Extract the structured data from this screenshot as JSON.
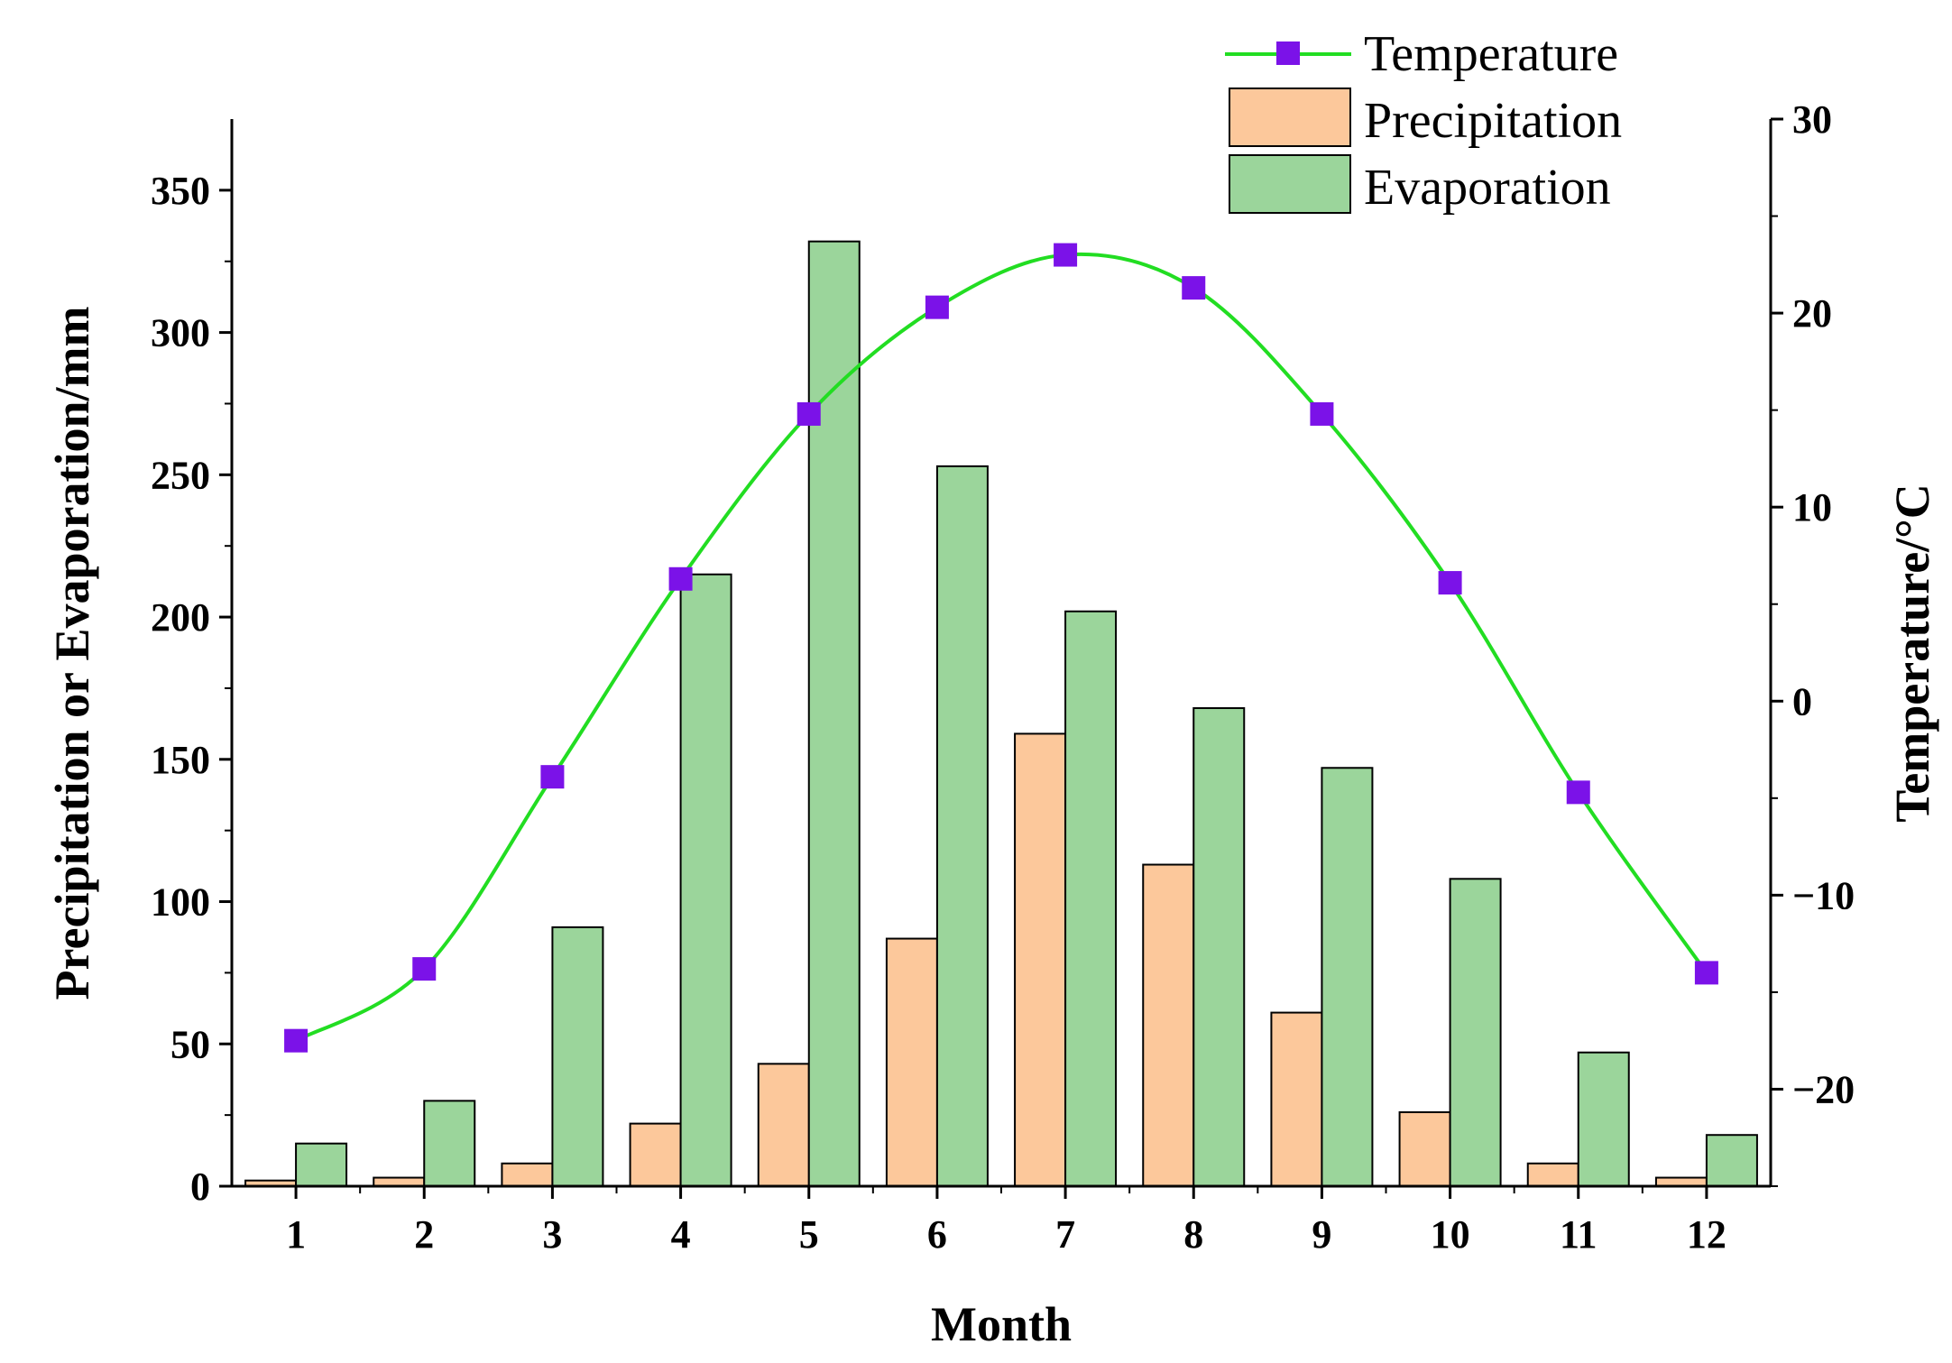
{
  "chart_data": {
    "type": "bar+line",
    "categories": [
      "1",
      "2",
      "3",
      "4",
      "5",
      "6",
      "7",
      "8",
      "9",
      "10",
      "11",
      "12"
    ],
    "series": [
      {
        "name": "Precipitation",
        "axis": "left",
        "kind": "bar",
        "color": "#fcc89b",
        "values": [
          2,
          3,
          8,
          22,
          43,
          87,
          159,
          113,
          61,
          26,
          8,
          3
        ]
      },
      {
        "name": "Evaporation",
        "axis": "left",
        "kind": "bar",
        "color": "#9bd59b",
        "values": [
          15,
          30,
          91,
          215,
          332,
          253,
          202,
          168,
          147,
          108,
          47,
          18
        ]
      },
      {
        "name": "Temperature",
        "axis": "right",
        "kind": "line",
        "color": "#22dd22",
        "marker_color": "#7b12e8",
        "values": [
          -17.5,
          -13.8,
          -3.9,
          6.3,
          14.8,
          20.3,
          23.0,
          21.3,
          14.8,
          6.1,
          -4.7,
          -14.0
        ]
      }
    ],
    "xlabel": "Month",
    "ylabel_left": "Precipitation or Evaporation/mm",
    "ylabel_right": "Temperature/°C",
    "ylim_left": [
      0,
      375
    ],
    "yticks_left": [
      "0",
      "50",
      "100",
      "150",
      "200",
      "250",
      "300",
      "350"
    ],
    "ylim_right": [
      -25,
      30
    ],
    "yticks_right": [
      "−20",
      "−10",
      "0",
      "10",
      "20",
      "30"
    ],
    "legend_position": "top-right",
    "legend": [
      "Temperature",
      "Precipitation",
      "Evaporation"
    ]
  }
}
